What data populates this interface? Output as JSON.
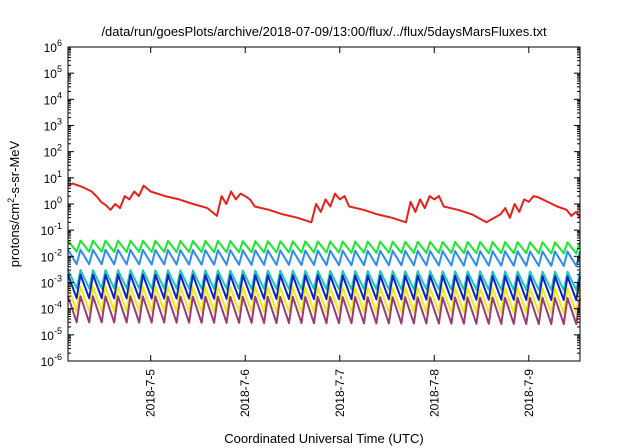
{
  "chart_data": {
    "type": "line",
    "title": "/data/run/goesPlots/archive/2018-07-09/13:00/flux/../flux/5daysMarsFluxes.txt",
    "xlabel": "Coordinated Universal Time (UTC)",
    "ylabel_prefix": "protons/cm",
    "ylabel_sup": "2",
    "ylabel_suffix": "-s-sr-MeV",
    "y_scale": "log",
    "ylim": [
      1e-06,
      1000000.0
    ],
    "xlim": [
      "2018-07-04 03:00",
      "2018-07-09 13:00"
    ],
    "x_ticks": [
      "2018-7-5",
      "2018-7-6",
      "2018-7-7",
      "2018-7-8",
      "2018-7-9"
    ],
    "y_ticks": [
      {
        "base": "10",
        "exp": "-6"
      },
      {
        "base": "10",
        "exp": "-5"
      },
      {
        "base": "10",
        "exp": "-4"
      },
      {
        "base": "10",
        "exp": "-3"
      },
      {
        "base": "10",
        "exp": "-2"
      },
      {
        "base": "10",
        "exp": "-1"
      },
      {
        "base": "10",
        "exp": "0"
      },
      {
        "base": "10",
        "exp": "1"
      },
      {
        "base": "10",
        "exp": "2"
      },
      {
        "base": "10",
        "exp": "3"
      },
      {
        "base": "10",
        "exp": "4"
      },
      {
        "base": "10",
        "exp": "5"
      },
      {
        "base": "10",
        "exp": "6"
      }
    ],
    "grid": false,
    "series": [
      {
        "color": "#e8201c",
        "x": [
          "2018-07-04 03:00",
          "2018-07-04 04:12",
          "2018-07-04 06:36",
          "2018-07-04 09:00",
          "2018-07-04 10:12",
          "2018-07-04 11:24",
          "2018-07-04 12:36",
          "2018-07-04 13:48",
          "2018-07-04 15:00",
          "2018-07-04 16:12",
          "2018-07-04 17:24",
          "2018-07-04 18:36",
          "2018-07-04 19:48",
          "2018-07-04 21:00",
          "2018-07-04 22:12",
          "2018-07-05 00:00",
          "2018-07-05 03:36",
          "2018-07-05 07:12",
          "2018-07-05 10:48",
          "2018-07-05 14:24",
          "2018-07-05 16:48",
          "2018-07-05 18:00",
          "2018-07-05 19:12",
          "2018-07-05 20:24",
          "2018-07-05 21:36",
          "2018-07-05 22:48",
          "2018-07-06 00:00",
          "2018-07-06 01:12",
          "2018-07-06 02:24",
          "2018-07-06 06:00",
          "2018-07-06 09:36",
          "2018-07-06 13:12",
          "2018-07-06 16:48",
          "2018-07-06 18:00",
          "2018-07-06 19:12",
          "2018-07-06 20:24",
          "2018-07-06 21:36",
          "2018-07-06 22:48",
          "2018-07-07 00:00",
          "2018-07-07 01:12",
          "2018-07-07 02:24",
          "2018-07-07 06:00",
          "2018-07-07 09:36",
          "2018-07-07 13:12",
          "2018-07-07 16:48",
          "2018-07-07 18:00",
          "2018-07-07 19:12",
          "2018-07-07 20:24",
          "2018-07-07 21:36",
          "2018-07-07 22:48",
          "2018-07-08 00:00",
          "2018-07-08 01:12",
          "2018-07-08 02:24",
          "2018-07-08 06:00",
          "2018-07-08 09:36",
          "2018-07-08 13:12",
          "2018-07-08 16:48",
          "2018-07-08 18:00",
          "2018-07-08 19:12",
          "2018-07-08 20:24",
          "2018-07-08 21:36",
          "2018-07-08 22:48",
          "2018-07-09 00:00",
          "2018-07-09 01:12",
          "2018-07-09 02:24",
          "2018-07-09 04:48",
          "2018-07-09 07:12",
          "2018-07-09 09:36",
          "2018-07-09 10:48",
          "2018-07-09 12:00",
          "2018-07-09 13:00"
        ],
        "y": [
          5,
          6,
          4.5,
          3,
          2,
          1.2,
          0.9,
          0.6,
          1,
          0.7,
          2,
          1.5,
          3,
          2,
          5,
          3,
          2,
          1.5,
          1,
          0.7,
          0.35,
          2,
          1,
          3,
          1.5,
          2.5,
          2,
          1.5,
          0.8,
          0.6,
          0.4,
          0.3,
          0.2,
          1,
          0.5,
          1.5,
          0.8,
          2.5,
          1.5,
          2,
          0.8,
          0.6,
          0.4,
          0.3,
          0.2,
          1.2,
          0.5,
          1.5,
          0.7,
          2,
          1.5,
          2,
          0.8,
          0.6,
          0.4,
          0.2,
          0.4,
          0.7,
          0.3,
          1,
          0.5,
          1.5,
          1.2,
          2,
          1.8,
          1.2,
          0.8,
          0.6,
          0.35,
          0.5,
          0.3
        ]
      },
      {
        "color": "#1ae82a",
        "x": [
          "2018-07-04 03:00",
          "2018-07-09 13:00"
        ],
        "y": [
          0.03,
          0.02
        ],
        "wave": {
          "low": 0.015,
          "high": 0.04,
          "periods": 41
        }
      },
      {
        "color": "#2d8cf0",
        "x": [
          "2018-07-04 03:00",
          "2018-07-09 13:00"
        ],
        "y": [
          0.012,
          0.008
        ],
        "wave": {
          "low": 0.005,
          "high": 0.018,
          "periods": 41
        }
      },
      {
        "color": "#18c8b4",
        "x": [
          "2018-07-04 03:00",
          "2018-07-09 13:00"
        ],
        "y": [
          0.002,
          0.0015
        ],
        "wave": {
          "low": 0.0006,
          "high": 0.003,
          "periods": 41
        }
      },
      {
        "color": "#1020c8",
        "x": [
          "2018-07-04 03:00",
          "2018-07-09 13:00"
        ],
        "y": [
          0.001,
          0.0008
        ],
        "wave": {
          "low": 0.00025,
          "high": 0.002,
          "periods": 41
        }
      },
      {
        "color": "#f0e818",
        "x": [
          "2018-07-04 03:00",
          "2018-07-09 13:00"
        ],
        "y": [
          0.0003,
          0.0002
        ],
        "wave": {
          "low": 8e-05,
          "high": 0.0007,
          "periods": 41
        }
      },
      {
        "color": "#9a3c78",
        "x": [
          "2018-07-04 03:00",
          "2018-07-09 13:00"
        ],
        "y": [
          0.0001,
          8e-05
        ],
        "wave": {
          "low": 3e-05,
          "high": 0.0003,
          "periods": 41
        }
      }
    ]
  }
}
